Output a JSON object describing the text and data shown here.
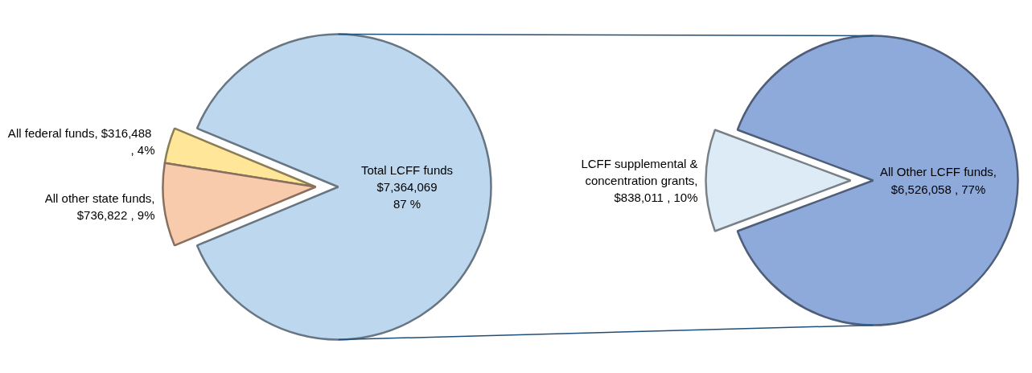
{
  "chart_data": [
    {
      "type": "pie",
      "categories": [
        "All federal funds",
        "All other state funds",
        "Total LCFF funds"
      ],
      "values": [
        316488,
        736822,
        7364069
      ],
      "colors": [
        "#ffe699",
        "#f8cbad",
        "#bdd7ee"
      ],
      "value_labels": [
        ",  $316,488\n, 4%",
        ",\n$736,822 , 9%",
        "\n$7,364,069\n87 %"
      ]
    },
    {
      "type": "pie",
      "categories": [
        "LCFF supplemental &\nconcentration grants",
        "All Other LCFF funds"
      ],
      "values": [
        838011,
        6526058
      ],
      "colors": [
        "#ddebf7",
        "#8eaadb"
      ],
      "value_labels": [
        ",\n$838,011 , 10%",
        ",\n$6,526,058 , 77%"
      ]
    }
  ]
}
